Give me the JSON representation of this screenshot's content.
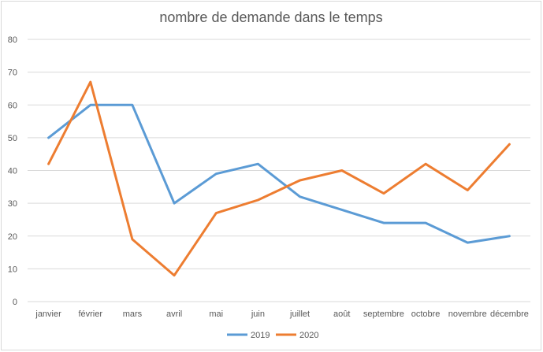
{
  "chart_data": {
    "type": "line",
    "title": "nombre de demande dans le temps",
    "xlabel": "",
    "ylabel": "",
    "categories": [
      "janvier",
      "février",
      "mars",
      "avril",
      "mai",
      "juin",
      "juillet",
      "août",
      "septembre",
      "octobre",
      "novembre",
      "décembre"
    ],
    "ylim": [
      0,
      80
    ],
    "yticks": [
      0,
      10,
      20,
      30,
      40,
      50,
      60,
      70,
      80
    ],
    "grid": true,
    "legend_position": "bottom",
    "series": [
      {
        "name": "2019",
        "color": "#5b9bd5",
        "values": [
          50,
          60,
          60,
          30,
          39,
          42,
          32,
          28,
          24,
          24,
          18,
          20
        ]
      },
      {
        "name": "2020",
        "color": "#ed7d31",
        "values": [
          42,
          67,
          19,
          8,
          27,
          31,
          37,
          40,
          33,
          42,
          34,
          48
        ]
      }
    ]
  }
}
